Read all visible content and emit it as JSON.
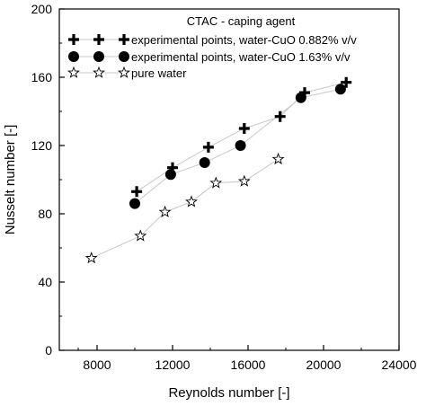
{
  "chart_data": {
    "type": "scatter",
    "title": "",
    "xlabel": "Reynolds number [-]",
    "ylabel": "Nusselt number [-]",
    "xlim": [
      6000,
      24000
    ],
    "ylim": [
      0,
      200
    ],
    "xticks": [
      8000,
      12000,
      16000,
      20000,
      24000
    ],
    "yticks": [
      0,
      40,
      80,
      120,
      160,
      200
    ],
    "grid": false,
    "legend_position": "top-left",
    "legend_title": "CTAC - caping agent",
    "series": [
      {
        "name": "experimental points, water-CuO 0.882% v/v",
        "marker": "plus",
        "color": "#000000",
        "line_color": "#c8c8c8",
        "x": [
          10100,
          12000,
          13900,
          15800,
          17700,
          19000,
          21200
        ],
        "y": [
          93,
          107,
          119,
          130,
          137,
          151,
          157
        ]
      },
      {
        "name": "experimental points, water-CuO 1.63% v/v",
        "marker": "circle",
        "color": "#000000",
        "line_color": "#c8c8c8",
        "x": [
          10000,
          11900,
          13700,
          15600,
          18800,
          20900
        ],
        "y": [
          86,
          103,
          110,
          120,
          148,
          153
        ]
      },
      {
        "name": "pure water",
        "marker": "star",
        "color": "#000000",
        "line_color": "#c8c8c8",
        "x": [
          7700,
          10300,
          11600,
          13000,
          14300,
          15800,
          17600
        ],
        "y": [
          54,
          67,
          81,
          87,
          98,
          99,
          112
        ]
      }
    ]
  }
}
